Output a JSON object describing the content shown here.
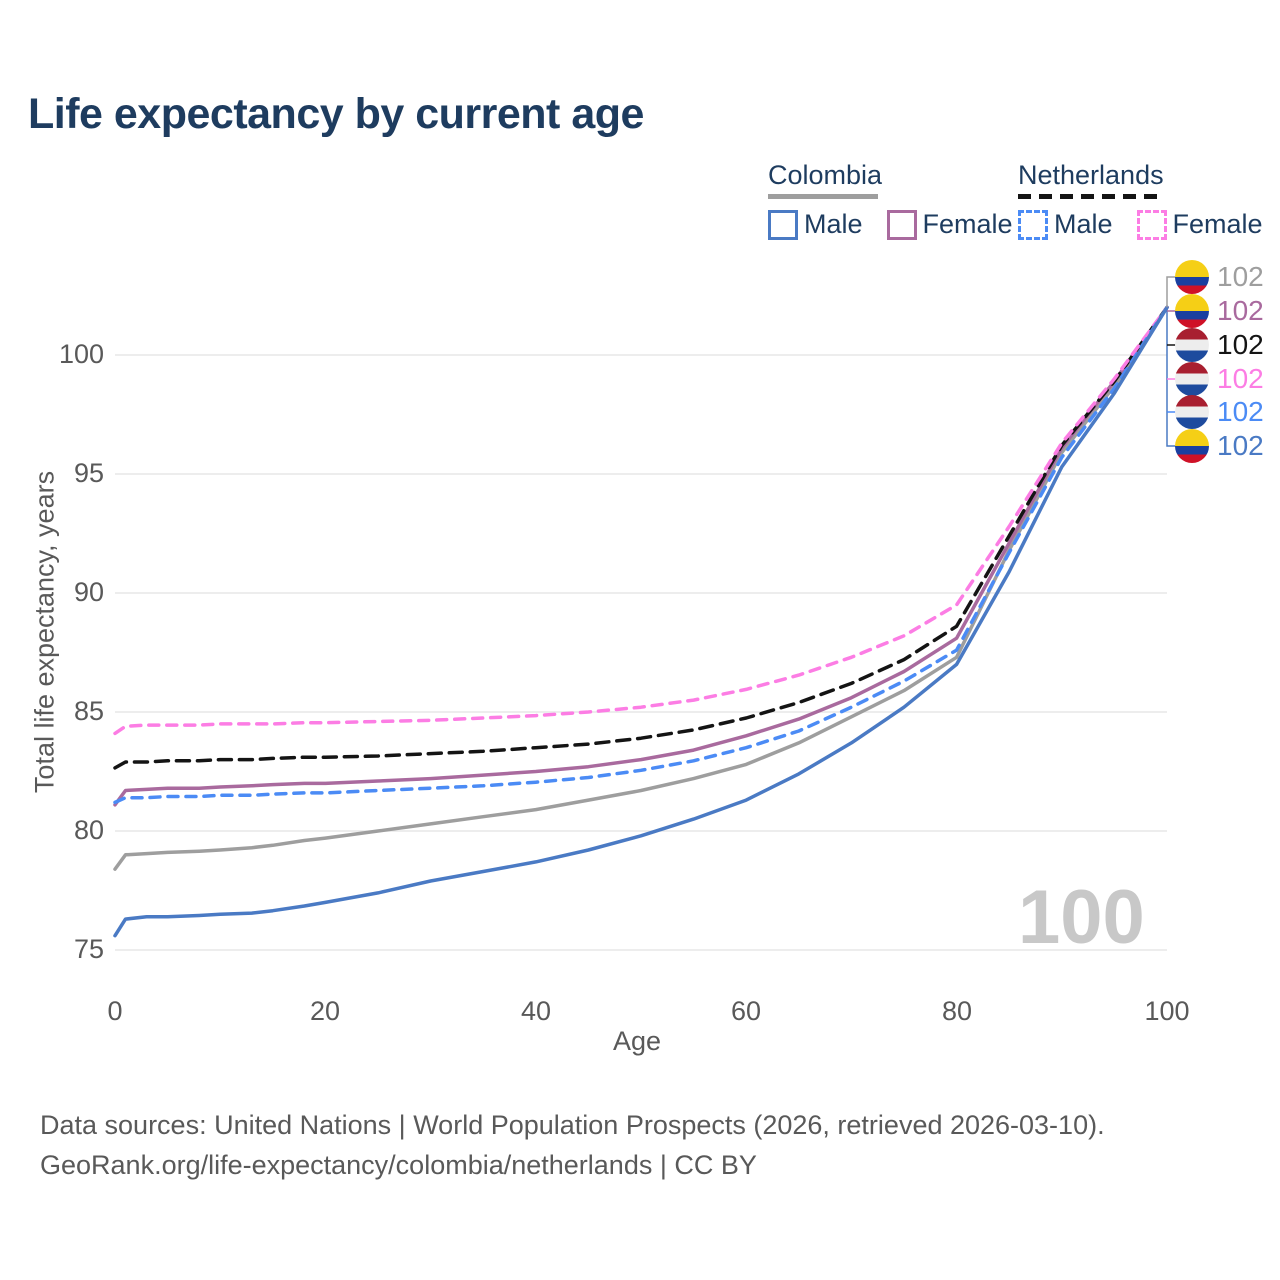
{
  "title": "Life expectancy by current age",
  "legend": {
    "groups": [
      {
        "label": "Colombia",
        "underline_color": "#9e9e9e",
        "underline_style": "solid",
        "items": [
          {
            "label": "Male",
            "color": "#4a7ac4",
            "dashed": false
          },
          {
            "label": "Female",
            "color": "#a96a9e",
            "dashed": false
          }
        ]
      },
      {
        "label": "Netherlands",
        "underline_color": "#141414",
        "underline_style": "dashed",
        "items": [
          {
            "label": "Male",
            "color": "#4b8bf5",
            "dashed": true
          },
          {
            "label": "Female",
            "color": "#fc7de4",
            "dashed": true
          }
        ]
      }
    ]
  },
  "axes": {
    "x_label": "Age",
    "y_label": "Total life expectancy, years"
  },
  "watermark_age": "100",
  "end_labels": [
    {
      "flag": "colombia",
      "series": "Colombia Total",
      "value": "102",
      "color": "#9e9e9e"
    },
    {
      "flag": "colombia",
      "series": "Colombia Female",
      "value": "102",
      "color": "#a96a9e"
    },
    {
      "flag": "netherlands",
      "series": "Netherlands Total",
      "value": "102",
      "color": "#141414"
    },
    {
      "flag": "netherlands",
      "series": "Netherlands Female",
      "value": "102",
      "color": "#fc7de4"
    },
    {
      "flag": "netherlands",
      "series": "Netherlands Male",
      "value": "102",
      "color": "#4b8bf5"
    },
    {
      "flag": "colombia",
      "series": "Colombia Male",
      "value": "102",
      "color": "#4a7ac4"
    }
  ],
  "footer": {
    "line1": "Data sources: United Nations | World Population Prospects (2026, retrieved 2026-03-10).",
    "line2": "GeoRank.org/life-expectancy/colombia/netherlands | CC BY"
  },
  "chart_data": {
    "type": "line",
    "title": "Life expectancy by current age",
    "xlabel": "Age",
    "ylabel": "Total life expectancy, years",
    "xlim": [
      0,
      100
    ],
    "ylim": [
      73.5,
      103
    ],
    "x_ticks": [
      0,
      20,
      40,
      60,
      80,
      100
    ],
    "y_ticks": [
      75,
      80,
      85,
      90,
      95,
      100
    ],
    "grid": "horizontal",
    "legend_position": "top-right",
    "x": [
      0,
      1,
      3,
      5,
      8,
      10,
      13,
      15,
      18,
      20,
      25,
      30,
      35,
      40,
      45,
      50,
      55,
      60,
      65,
      70,
      75,
      80,
      85,
      90,
      95,
      100
    ],
    "series": [
      {
        "name": "Colombia Total",
        "country": "Colombia",
        "sex": "Both",
        "color": "#9e9e9e",
        "dash": "solid",
        "values": [
          78.4,
          79.0,
          79.05,
          79.1,
          79.15,
          79.2,
          79.3,
          79.4,
          79.6,
          79.7,
          80.0,
          80.3,
          80.6,
          80.9,
          81.3,
          81.7,
          82.2,
          82.8,
          83.7,
          84.8,
          85.9,
          87.3,
          91.8,
          95.9,
          98.7,
          102
        ]
      },
      {
        "name": "Colombia Female",
        "country": "Colombia",
        "sex": "Female",
        "color": "#a96a9e",
        "dash": "solid",
        "values": [
          81.1,
          81.7,
          81.75,
          81.8,
          81.8,
          81.85,
          81.9,
          81.95,
          82.0,
          82.0,
          82.1,
          82.2,
          82.35,
          82.5,
          82.7,
          83.0,
          83.4,
          84.0,
          84.7,
          85.6,
          86.7,
          88.1,
          92.1,
          96.1,
          98.9,
          102
        ]
      },
      {
        "name": "Netherlands Total",
        "country": "Netherlands",
        "sex": "Both",
        "color": "#141414",
        "dash": "dashed",
        "values": [
          82.65,
          82.9,
          82.9,
          82.95,
          82.95,
          83.0,
          83.0,
          83.05,
          83.1,
          83.1,
          83.15,
          83.25,
          83.35,
          83.5,
          83.65,
          83.9,
          84.25,
          84.75,
          85.4,
          86.2,
          87.2,
          88.6,
          92.4,
          96.2,
          98.9,
          102
        ]
      },
      {
        "name": "Netherlands Female",
        "country": "Netherlands",
        "sex": "Female",
        "color": "#fc7de4",
        "dash": "dashed",
        "values": [
          84.1,
          84.4,
          84.45,
          84.45,
          84.45,
          84.5,
          84.5,
          84.5,
          84.55,
          84.55,
          84.6,
          84.65,
          84.75,
          84.85,
          85.0,
          85.2,
          85.5,
          85.95,
          86.55,
          87.3,
          88.2,
          89.5,
          92.8,
          96.3,
          99.0,
          102
        ]
      },
      {
        "name": "Netherlands Male",
        "country": "Netherlands",
        "sex": "Male",
        "color": "#4b8bf5",
        "dash": "dashed",
        "values": [
          81.2,
          81.4,
          81.4,
          81.45,
          81.45,
          81.5,
          81.5,
          81.55,
          81.6,
          81.6,
          81.7,
          81.8,
          81.9,
          82.05,
          82.25,
          82.55,
          82.95,
          83.5,
          84.2,
          85.2,
          86.3,
          87.6,
          91.7,
          95.7,
          98.6,
          102
        ]
      },
      {
        "name": "Colombia Male",
        "country": "Colombia",
        "sex": "Male",
        "color": "#4a7ac4",
        "dash": "solid",
        "values": [
          75.6,
          76.3,
          76.4,
          76.4,
          76.45,
          76.5,
          76.55,
          76.65,
          76.85,
          77.0,
          77.4,
          77.9,
          78.3,
          78.7,
          79.2,
          79.8,
          80.5,
          81.3,
          82.4,
          83.7,
          85.2,
          87.0,
          90.9,
          95.3,
          98.4,
          102
        ]
      }
    ]
  }
}
